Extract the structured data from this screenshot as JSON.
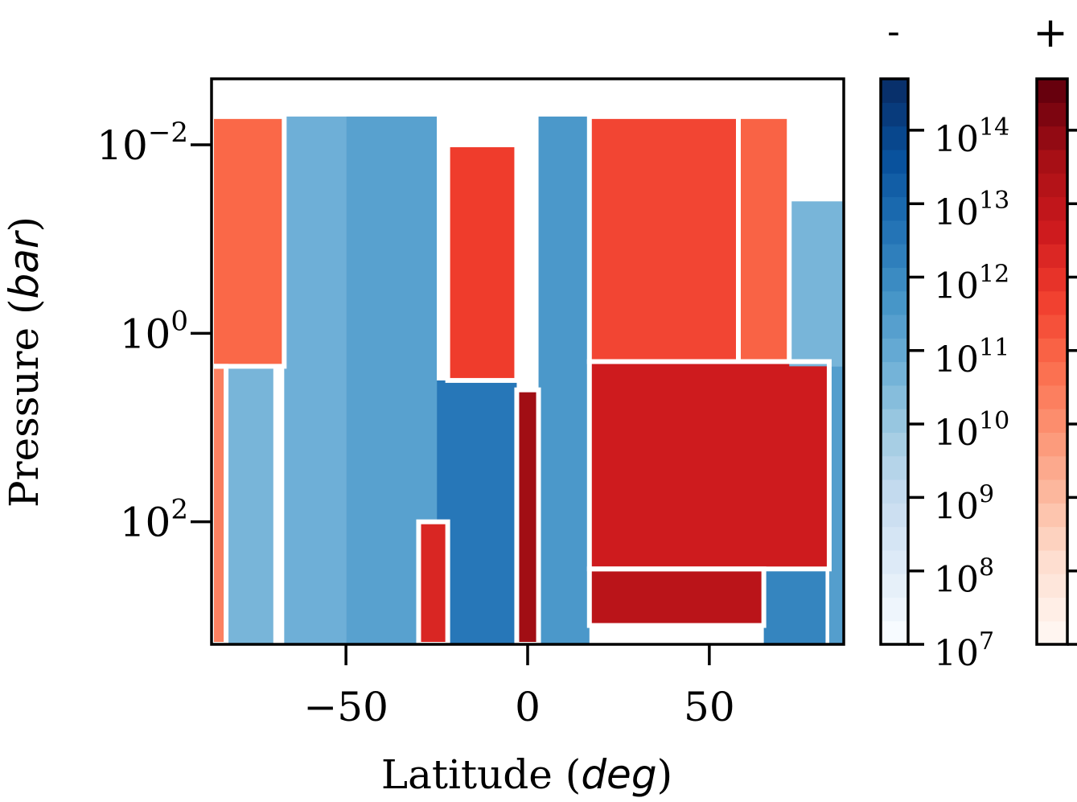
{
  "chart_data": {
    "type": "heatmap",
    "title": "",
    "xlabel": "Latitude",
    "xlabel_unit": "deg",
    "ylabel": "Pressure",
    "ylabel_unit": "bar",
    "x_range": [
      -87,
      87
    ],
    "y_range_log10": [
      -2.7,
      3.3
    ],
    "y_scale": "log",
    "y_inverted": true,
    "data_top_log10": -2.3,
    "x_ticks": [
      {
        "value": -50,
        "label": "−50"
      },
      {
        "value": 0,
        "label": "0"
      },
      {
        "value": 50,
        "label": "50"
      }
    ],
    "y_ticks": [
      {
        "exp": -2,
        "base": "10",
        "sup": "−2"
      },
      {
        "exp": 0,
        "base": "10",
        "sup": "0"
      },
      {
        "exp": 2,
        "base": "10",
        "sup": "2"
      }
    ],
    "colorbar_negative": {
      "label": "-",
      "colors": [
        "#f7fbff",
        "#deebf7",
        "#c6dbef",
        "#9ecae1",
        "#6baed6",
        "#4292c6",
        "#2171b5",
        "#08519c",
        "#08306b"
      ]
    },
    "colorbar_positive": {
      "label": "+",
      "colors": [
        "#fff5f0",
        "#fee0d2",
        "#fcbba1",
        "#fc9272",
        "#fb6a4a",
        "#ef3b2c",
        "#cb181d",
        "#a50f15",
        "#67000d"
      ]
    },
    "colorbar_ticks": [
      {
        "exp": 7,
        "base": "10",
        "sup": "7"
      },
      {
        "exp": 8,
        "base": "10",
        "sup": "8"
      },
      {
        "exp": 9,
        "base": "10",
        "sup": "9"
      },
      {
        "exp": 10,
        "base": "10",
        "sup": "10"
      },
      {
        "exp": 11,
        "base": "10",
        "sup": "11"
      },
      {
        "exp": 12,
        "base": "10",
        "sup": "12"
      },
      {
        "exp": 13,
        "base": "10",
        "sup": "13"
      },
      {
        "exp": 14,
        "base": "10",
        "sup": "14"
      }
    ],
    "colorbar_range_exp": [
      7,
      14.7
    ],
    "regions": [
      {
        "sign": "+",
        "lat": [
          -87,
          -67
        ],
        "logp": [
          -2.3,
          0.35
        ],
        "level": 10.9
      },
      {
        "sign": "+",
        "lat": [
          -87,
          -83
        ],
        "logp": [
          0.35,
          3.3
        ],
        "level": 10.3
      },
      {
        "sign": "-",
        "lat": [
          -83,
          -70
        ],
        "logp": [
          0.35,
          3.3
        ],
        "level": 10.6
      },
      {
        "sign": "-",
        "lat": [
          -67,
          -50
        ],
        "logp": [
          -2.3,
          3.3
        ],
        "level": 10.8
      },
      {
        "sign": "-",
        "lat": [
          -50,
          -25
        ],
        "logp": [
          -2.3,
          3.3
        ],
        "level": 11.3
      },
      {
        "sign": "-",
        "lat": [
          -25,
          -3
        ],
        "logp": [
          0.5,
          3.3
        ],
        "level": 12.6
      },
      {
        "sign": "+",
        "lat": [
          -22,
          -3
        ],
        "logp": [
          -2.0,
          0.5
        ],
        "level": 11.8
      },
      {
        "sign": "+",
        "lat": [
          -3,
          3
        ],
        "logp": [
          0.6,
          3.3
        ],
        "level": 13.8
      },
      {
        "sign": "+",
        "lat": [
          -30,
          -22
        ],
        "logp": [
          2.0,
          3.3
        ],
        "level": 12.4
      },
      {
        "sign": "-",
        "lat": [
          3,
          17
        ],
        "logp": [
          -2.3,
          3.3
        ],
        "level": 11.6
      },
      {
        "sign": "+",
        "lat": [
          17,
          58
        ],
        "logp": [
          -2.3,
          0.3
        ],
        "level": 11.6
      },
      {
        "sign": "+",
        "lat": [
          17,
          83
        ],
        "logp": [
          0.3,
          2.5
        ],
        "level": 12.7
      },
      {
        "sign": "+",
        "lat": [
          17,
          65
        ],
        "logp": [
          2.5,
          3.1
        ],
        "level": 13.2
      },
      {
        "sign": "+",
        "lat": [
          58,
          72
        ],
        "logp": [
          -2.3,
          0.3
        ],
        "level": 11.0
      },
      {
        "sign": "-",
        "lat": [
          72,
          87
        ],
        "logp": [
          -1.4,
          0.35
        ],
        "level": 10.6
      },
      {
        "sign": "-",
        "lat": [
          83,
          87
        ],
        "logp": [
          0.35,
          3.3
        ],
        "level": 11.4
      },
      {
        "sign": "-",
        "lat": [
          65,
          82
        ],
        "logp": [
          2.5,
          3.3
        ],
        "level": 12.2
      }
    ]
  }
}
